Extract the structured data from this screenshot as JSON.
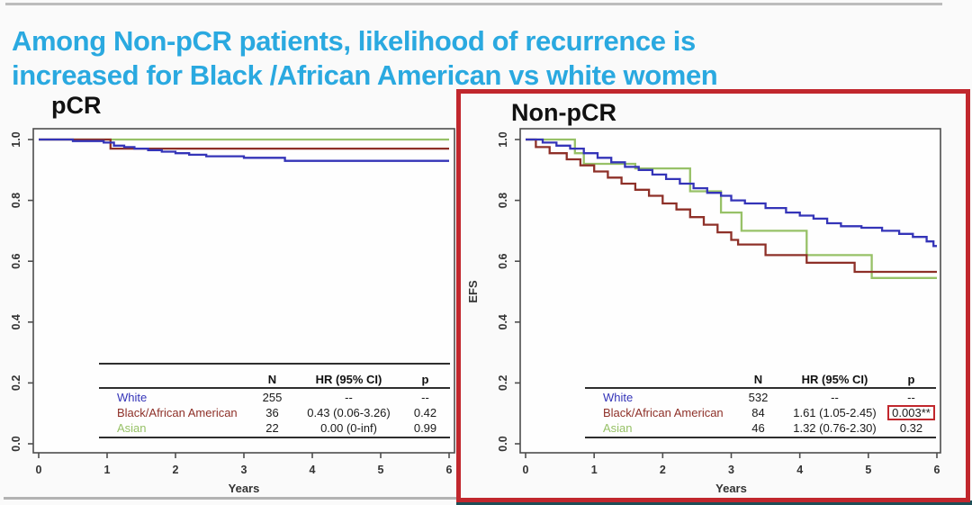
{
  "slide": {
    "title_line1": "Among Non-pCR patients, likelihood of recurrence is",
    "title_line2": "increased for Black /African American vs white women",
    "title_color": "#2aa9e0",
    "highlight_color": "#c1272d",
    "footer_bar_color": "#1d4f57",
    "axis_color": "#4d4d4d"
  },
  "chart_data": [
    {
      "type": "line",
      "subtype": "kaplan-meier-step",
      "title": "pCR",
      "xlabel": "Years",
      "ylabel": "",
      "xlim": [
        0,
        6
      ],
      "ylim": [
        0.0,
        1.0
      ],
      "x_ticks": [
        "0",
        "1",
        "2",
        "3",
        "4",
        "5",
        "6"
      ],
      "y_ticks": [
        "0.0",
        "0.2",
        "0.4",
        "0.6",
        "0.8",
        "1.0"
      ],
      "grid": false,
      "highlighted": false,
      "table_headers": [
        "N",
        "HR (95% CI)",
        "p"
      ],
      "series": [
        {
          "name": "White",
          "color": "#3434b8",
          "n": "255",
          "hr": "--",
          "p": "--",
          "p_boxed": false,
          "points": [
            [
              0,
              1.0
            ],
            [
              0.5,
              0.995
            ],
            [
              0.95,
              0.99
            ],
            [
              1.1,
              0.98
            ],
            [
              1.25,
              0.975
            ],
            [
              1.4,
              0.97
            ],
            [
              1.6,
              0.965
            ],
            [
              1.8,
              0.96
            ],
            [
              2.0,
              0.955
            ],
            [
              2.2,
              0.95
            ],
            [
              2.45,
              0.945
            ],
            [
              3.0,
              0.94
            ],
            [
              3.6,
              0.93
            ],
            [
              6,
              0.93
            ]
          ]
        },
        {
          "name": "Black/African American",
          "color": "#8e3028",
          "n": "36",
          "hr": "0.43 (0.06-3.26)",
          "p": "0.42",
          "p_boxed": false,
          "points": [
            [
              0,
              1.0
            ],
            [
              1.05,
              0.97
            ],
            [
              6,
              0.97
            ]
          ]
        },
        {
          "name": "Asian",
          "color": "#97c167",
          "n": "22",
          "hr": "0.00 (0-inf)",
          "p": "0.99",
          "p_boxed": false,
          "points": [
            [
              0,
              1.0
            ],
            [
              6,
              1.0
            ]
          ]
        }
      ]
    },
    {
      "type": "line",
      "subtype": "kaplan-meier-step",
      "title": "Non-pCR",
      "xlabel": "Years",
      "ylabel": "EFS",
      "xlim": [
        0,
        6
      ],
      "ylim": [
        0.0,
        1.0
      ],
      "x_ticks": [
        "0",
        "1",
        "2",
        "3",
        "4",
        "5",
        "6"
      ],
      "y_ticks": [
        "0.0",
        "0.2",
        "0.4",
        "0.6",
        "0.8",
        "1.0"
      ],
      "grid": false,
      "highlighted": true,
      "table_headers": [
        "N",
        "HR (95% CI)",
        "p"
      ],
      "series": [
        {
          "name": "White",
          "color": "#3434b8",
          "n": "532",
          "hr": "--",
          "p": "--",
          "p_boxed": false,
          "points": [
            [
              0,
              1.0
            ],
            [
              0.25,
              0.99
            ],
            [
              0.45,
              0.98
            ],
            [
              0.65,
              0.97
            ],
            [
              0.85,
              0.955
            ],
            [
              1.05,
              0.94
            ],
            [
              1.25,
              0.925
            ],
            [
              1.45,
              0.91
            ],
            [
              1.65,
              0.9
            ],
            [
              1.85,
              0.885
            ],
            [
              2.05,
              0.87
            ],
            [
              2.25,
              0.855
            ],
            [
              2.45,
              0.84
            ],
            [
              2.65,
              0.825
            ],
            [
              2.85,
              0.815
            ],
            [
              3.0,
              0.8
            ],
            [
              3.2,
              0.79
            ],
            [
              3.5,
              0.775
            ],
            [
              3.8,
              0.76
            ],
            [
              4.0,
              0.75
            ],
            [
              4.2,
              0.74
            ],
            [
              4.4,
              0.725
            ],
            [
              4.6,
              0.715
            ],
            [
              4.9,
              0.71
            ],
            [
              5.2,
              0.7
            ],
            [
              5.45,
              0.69
            ],
            [
              5.65,
              0.68
            ],
            [
              5.85,
              0.665
            ],
            [
              5.95,
              0.65
            ],
            [
              6,
              0.65
            ]
          ]
        },
        {
          "name": "Black/African American",
          "color": "#8e3028",
          "n": "84",
          "hr": "1.61 (1.05-2.45)",
          "p": "0.003**",
          "p_boxed": true,
          "points": [
            [
              0,
              1.0
            ],
            [
              0.15,
              0.975
            ],
            [
              0.35,
              0.955
            ],
            [
              0.6,
              0.935
            ],
            [
              0.8,
              0.915
            ],
            [
              1.0,
              0.895
            ],
            [
              1.2,
              0.875
            ],
            [
              1.4,
              0.855
            ],
            [
              1.6,
              0.835
            ],
            [
              1.8,
              0.815
            ],
            [
              2.0,
              0.79
            ],
            [
              2.2,
              0.77
            ],
            [
              2.4,
              0.745
            ],
            [
              2.6,
              0.72
            ],
            [
              2.8,
              0.695
            ],
            [
              3.0,
              0.67
            ],
            [
              3.1,
              0.655
            ],
            [
              3.5,
              0.62
            ],
            [
              4.1,
              0.595
            ],
            [
              4.8,
              0.565
            ],
            [
              6,
              0.565
            ]
          ]
        },
        {
          "name": "Asian",
          "color": "#97c167",
          "n": "46",
          "hr": "1.32 (0.76-2.30)",
          "p": "0.32",
          "p_boxed": false,
          "points": [
            [
              0,
              1.0
            ],
            [
              0.72,
              0.955
            ],
            [
              0.85,
              0.92
            ],
            [
              1.6,
              0.905
            ],
            [
              2.4,
              0.83
            ],
            [
              2.85,
              0.76
            ],
            [
              3.15,
              0.7
            ],
            [
              4.1,
              0.62
            ],
            [
              5.05,
              0.545
            ],
            [
              6,
              0.545
            ]
          ]
        }
      ]
    }
  ]
}
